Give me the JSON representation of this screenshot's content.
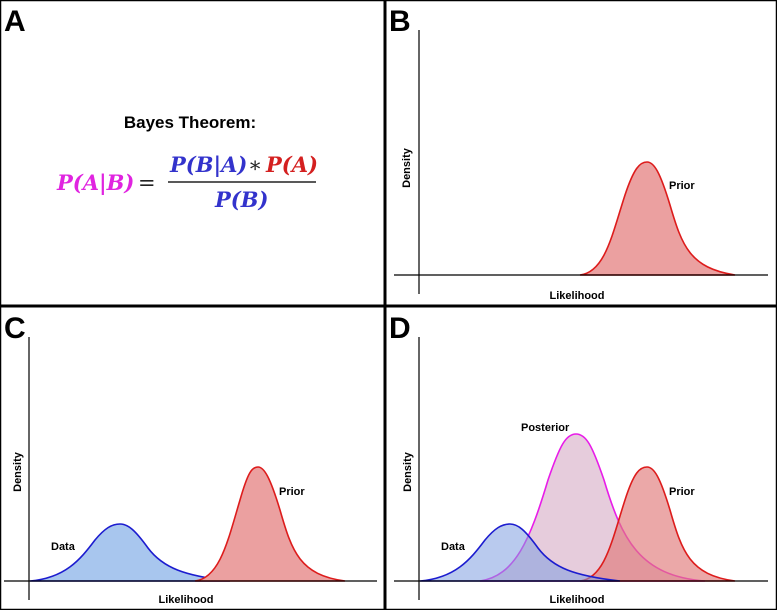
{
  "panels": {
    "a": {
      "letter": "A"
    },
    "b": {
      "letter": "B"
    },
    "c": {
      "letter": "C"
    },
    "d": {
      "letter": "D"
    }
  },
  "equation": {
    "title": "Bayes Theorem:",
    "lhs": "P(A|B)",
    "equals": "=",
    "num_left": "P(B|A)",
    "times": "∗",
    "num_right": "P(A)",
    "denominator": "P(B)",
    "colors": {
      "magenta": "#e024e0",
      "blue": "#3333cc",
      "red": "#d42020"
    }
  },
  "axes": {
    "y_label": "Density",
    "x_label": "Likelihood"
  },
  "curves": {
    "prior": {
      "label": "Prior",
      "stroke": "#dd1c1c",
      "fill": "#eba0a0"
    },
    "data": {
      "label": "Data",
      "stroke": "#1c1ccf",
      "fill": "#a8c6ee"
    },
    "posterior": {
      "label": "Posterior",
      "stroke": "#e81ce8",
      "fill": "#e2c3d6"
    }
  }
}
